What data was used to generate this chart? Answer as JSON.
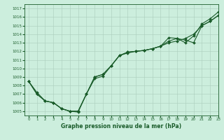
{
  "xlabel": "Graphe pression niveau de la mer (hPa)",
  "ylim": [
    1004.5,
    1017.5
  ],
  "xlim": [
    -0.5,
    23
  ],
  "yticks": [
    1005,
    1006,
    1007,
    1008,
    1009,
    1010,
    1011,
    1012,
    1013,
    1014,
    1015,
    1016,
    1017
  ],
  "xticks": [
    0,
    1,
    2,
    3,
    4,
    5,
    6,
    7,
    8,
    9,
    10,
    11,
    12,
    13,
    14,
    15,
    16,
    17,
    18,
    19,
    20,
    21,
    22,
    23
  ],
  "bg_color": "#cceedd",
  "grid_color": "#aaccbb",
  "line_color": "#1a5c2a",
  "marker": "D",
  "markersize": 2.0,
  "linewidth": 0.8,
  "series": [
    [
      1008.5,
      1007.0,
      1006.2,
      1006.0,
      1005.3,
      1005.0,
      1005.0,
      1007.0,
      1009.0,
      1009.3,
      1010.3,
      1011.5,
      1011.8,
      1012.0,
      1012.1,
      1012.3,
      1012.6,
      1013.0,
      1013.2,
      1013.5,
      1014.0,
      1015.0,
      1015.5,
      1016.2
    ],
    [
      1008.5,
      1007.0,
      1006.2,
      1006.0,
      1005.3,
      1005.0,
      1005.0,
      1007.0,
      1009.0,
      1009.3,
      1010.3,
      1011.5,
      1011.9,
      1012.0,
      1012.1,
      1012.3,
      1012.6,
      1013.2,
      1013.5,
      1013.3,
      1013.0,
      1015.0,
      1015.5,
      1016.2
    ],
    [
      1008.5,
      1007.2,
      1006.2,
      1006.0,
      1005.3,
      1005.0,
      1004.9,
      1007.0,
      1008.8,
      1009.1,
      1010.3,
      1011.5,
      1011.9,
      1012.0,
      1012.1,
      1012.3,
      1012.6,
      1013.6,
      1013.5,
      1013.0,
      1013.8,
      1015.2,
      1015.8,
      1016.6
    ]
  ]
}
